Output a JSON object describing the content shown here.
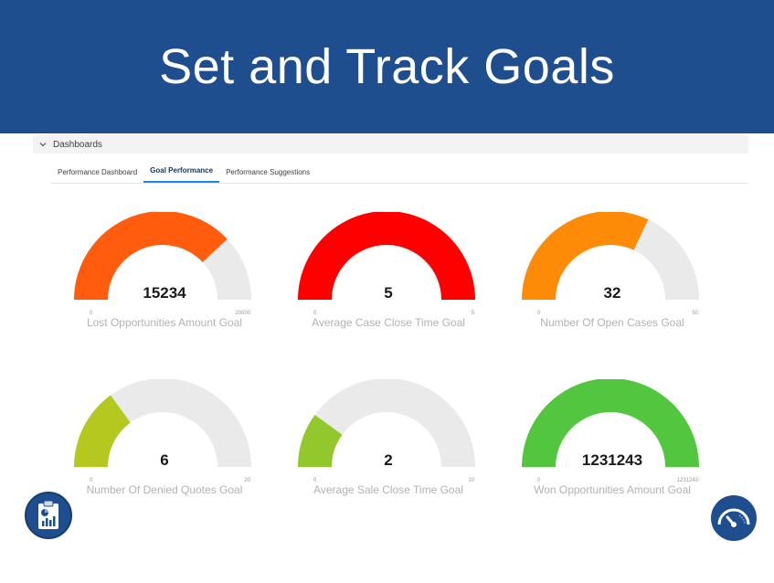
{
  "header": {
    "title": "Set and Track Goals"
  },
  "section": {
    "label": "Dashboards"
  },
  "tabs": [
    {
      "label": "Performance Dashboard",
      "active": false
    },
    {
      "label": "Goal Performance",
      "active": true
    },
    {
      "label": "Performance Suggestions",
      "active": false
    }
  ],
  "gauges": [
    {
      "title": "Lost Opportunities Amount Goal",
      "value": "15234",
      "min": "0",
      "max": "20000",
      "fraction": 0.76,
      "color": "#ff5d0d"
    },
    {
      "title": "Average Case Close Time Goal",
      "value": "5",
      "min": "0",
      "max": "5",
      "fraction": 1.0,
      "color": "#fe0000"
    },
    {
      "title": "Number Of Open Cases Goal",
      "value": "32",
      "min": "0",
      "max": "50",
      "fraction": 0.64,
      "color": "#fd8b08"
    },
    {
      "title": "Number Of Denied Quotes Goal",
      "value": "6",
      "min": "0",
      "max": "20",
      "fraction": 0.3,
      "color": "#b5c81f"
    },
    {
      "title": "Average Sale Close Time Goal",
      "value": "2",
      "min": "0",
      "max": "10",
      "fraction": 0.2,
      "color": "#93c82d"
    },
    {
      "title": "Won Opportunities Amount Goal",
      "value": "1231243",
      "min": "0",
      "max": "1231243",
      "fraction": 1.0,
      "color": "#52c63f"
    }
  ],
  "track_color": "#ebeaea",
  "icons": {
    "left": "clipboard-chart-icon",
    "right": "speedometer-icon"
  }
}
